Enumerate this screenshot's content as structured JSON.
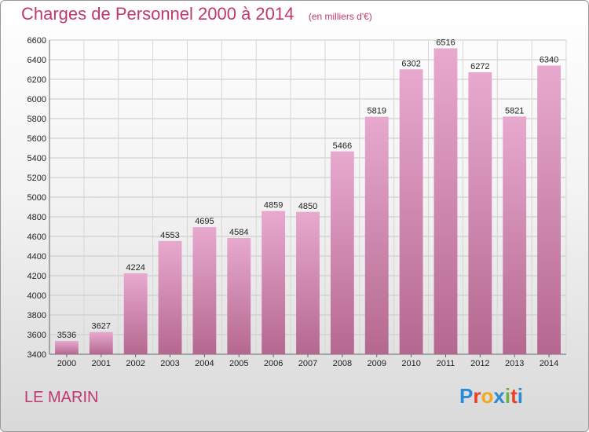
{
  "header": {
    "title": "Charges de Personnel 2000 à 2014",
    "subtitle": "(en milliers d'€)"
  },
  "footer": {
    "place": "LE MARIN",
    "logo": {
      "letters": [
        "P",
        "r",
        "o",
        "x",
        "i",
        "t",
        "i"
      ],
      "colors": [
        "#2a8bd6",
        "#e8412a",
        "#f2a81d",
        "#2a8bd6",
        "#6db33f",
        "#e8412a",
        "#2a8bd6"
      ]
    }
  },
  "colors": {
    "bar_top": "#e8a9cf",
    "bar_bottom": "#b5688f",
    "accent": "#c0386f"
  },
  "chart_data": {
    "type": "bar",
    "title": "Charges de Personnel 2000 à 2014",
    "subtitle": "(en milliers d'€)",
    "categories": [
      "2000",
      "2001",
      "2002",
      "2003",
      "2004",
      "2005",
      "2006",
      "2007",
      "2008",
      "2009",
      "2010",
      "2011",
      "2012",
      "2013",
      "2014"
    ],
    "values": [
      3536,
      3627,
      4224,
      4553,
      4695,
      4584,
      4859,
      4850,
      5466,
      5819,
      6302,
      6516,
      6272,
      5821,
      6340
    ],
    "ylim": [
      3400,
      6600
    ],
    "yticks": [
      3400,
      3600,
      3800,
      4000,
      4200,
      4400,
      4600,
      4800,
      5000,
      5200,
      5400,
      5600,
      5800,
      6000,
      6200,
      6400,
      6600
    ],
    "grid": true
  }
}
